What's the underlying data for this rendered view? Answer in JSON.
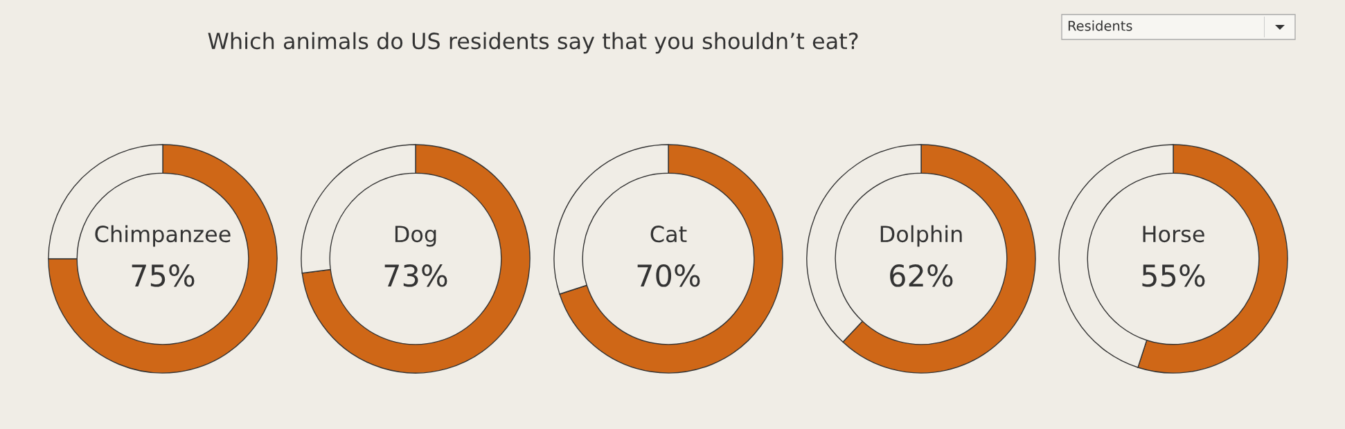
{
  "chart_data": [
    {
      "type": "donut",
      "title": "Which animals do US residents say that you shouldn’t eat?",
      "annotations": [
        "Residents"
      ],
      "categories": [
        "Chimpanzee",
        null
      ],
      "values": [
        75,
        25
      ],
      "colors": [
        "#cf6717",
        "#f0ede6"
      ],
      "value_labels": [
        "75%",
        null
      ]
    },
    {
      "type": "donut",
      "categories": [
        "Dog",
        null
      ],
      "values": [
        73,
        27
      ],
      "colors": [
        "#cf6717",
        "#f0ede6"
      ],
      "value_labels": [
        "73%",
        null
      ]
    },
    {
      "type": "donut",
      "categories": [
        "Cat",
        null
      ],
      "values": [
        70,
        30
      ],
      "colors": [
        "#cf6717",
        "#f0ede6"
      ],
      "value_labels": [
        "70%",
        null
      ]
    },
    {
      "type": "donut",
      "categories": [
        "Dolphin",
        null
      ],
      "values": [
        62,
        38
      ],
      "colors": [
        "#cf6717",
        "#f0ede6"
      ],
      "value_labels": [
        "62%",
        null
      ]
    },
    {
      "type": "donut",
      "categories": [
        "Horse",
        null
      ],
      "values": [
        55,
        45
      ],
      "colors": [
        "#cf6717",
        "#f0ede6"
      ],
      "value_labels": [
        "55%",
        null
      ]
    }
  ]
}
